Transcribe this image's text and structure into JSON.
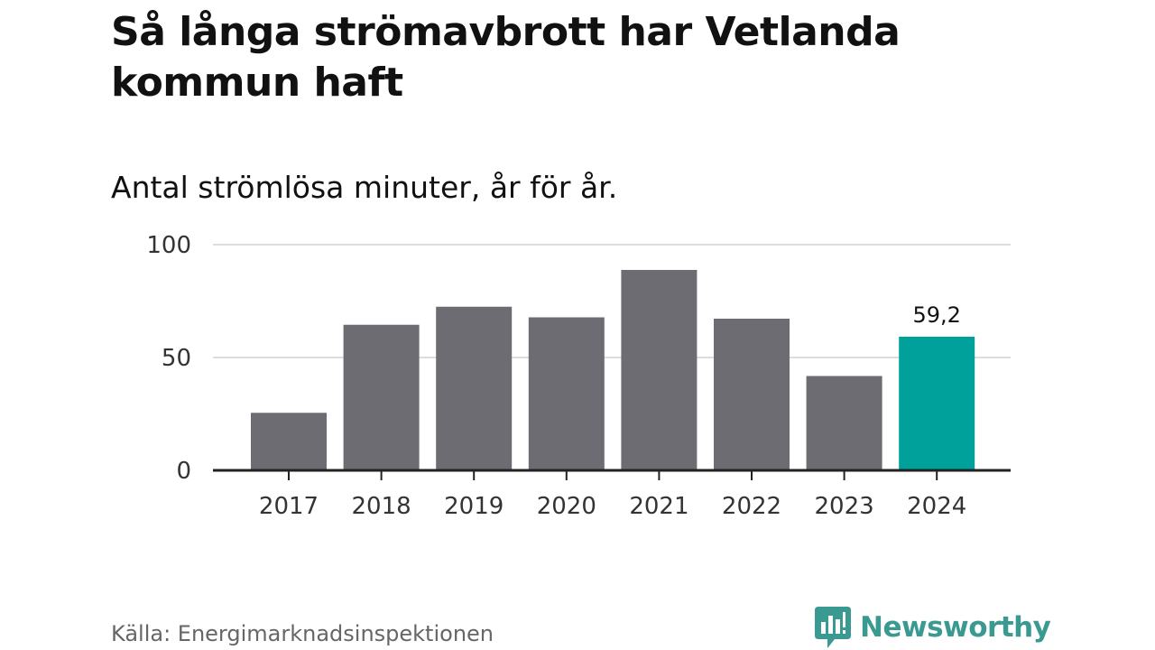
{
  "title": "Så långa strömavbrott har Vetlanda kommun haft",
  "subtitle": "Antal strömlösa minuter, år för år.",
  "source": "Källa: Energimarknadsinspektionen",
  "brand": {
    "name": "Newsworthy",
    "color": "#3a9a91",
    "icon": "newsworthy-logo-icon"
  },
  "chart_data": {
    "type": "bar",
    "categories": [
      "2017",
      "2018",
      "2019",
      "2020",
      "2021",
      "2022",
      "2023",
      "2024"
    ],
    "values": [
      25.5,
      64.5,
      72.5,
      67.8,
      88.8,
      67.2,
      41.8,
      59.2
    ],
    "ylim": [
      0,
      100
    ],
    "yticks": [
      0,
      50,
      100
    ],
    "ytick_labels": [
      "0",
      "50",
      "100"
    ],
    "highlight_index": 7,
    "highlight_label": "59,2",
    "colors": {
      "bar": "#6d6c72",
      "highlight": "#00a19a",
      "grid": "#dddddd",
      "axis": "#222222"
    },
    "xlabel": "",
    "ylabel": "",
    "grid": true
  }
}
